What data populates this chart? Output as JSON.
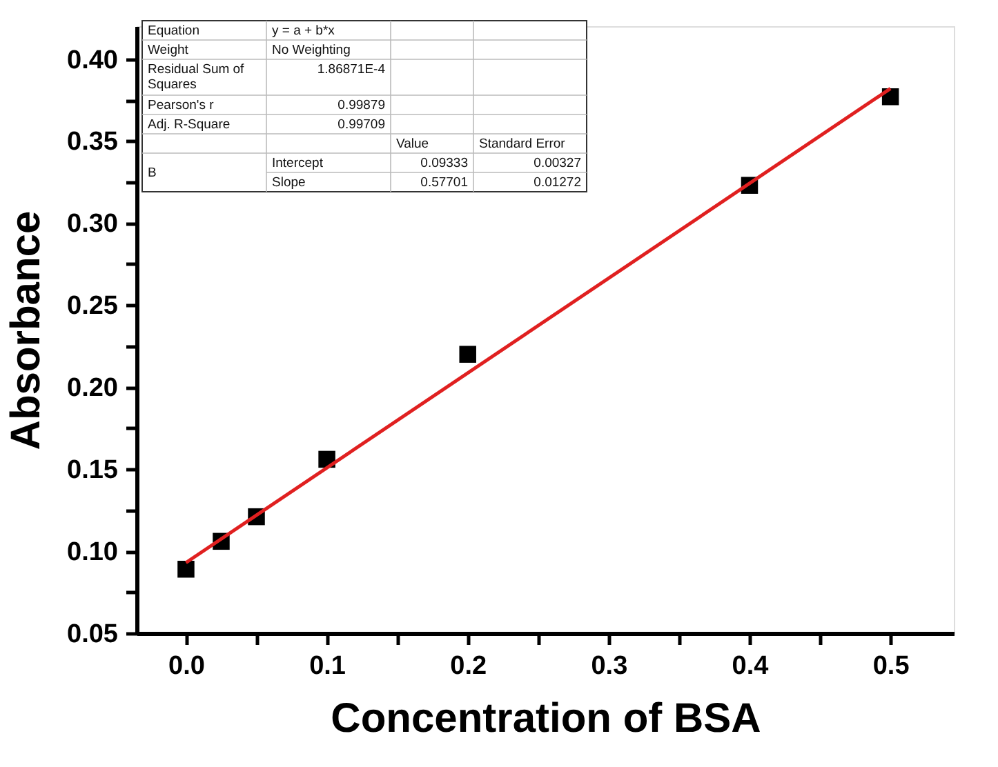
{
  "chart_data": {
    "type": "scatter",
    "xlabel": "Concentration of  BSA",
    "ylabel": "Absorbance",
    "xlim": [
      -0.035,
      0.545
    ],
    "ylim": [
      0.05,
      0.42
    ],
    "xticks": [
      {
        "value": 0.0,
        "label": "0.0"
      },
      {
        "value": 0.05,
        "label": null
      },
      0.1,
      {
        "value": 0.15,
        "label": null
      },
      0.2,
      {
        "value": 0.25,
        "label": null
      },
      0.3,
      {
        "value": 0.35,
        "label": null
      },
      0.4,
      {
        "value": 0.45,
        "label": null
      },
      0.5
    ],
    "yticks": [
      0.05,
      {
        "value": 0.075,
        "label": null
      },
      {
        "value": 0.1,
        "label": "0.10"
      },
      {
        "value": 0.125,
        "label": null
      },
      0.15,
      {
        "value": 0.175,
        "label": null
      },
      {
        "value": 0.2,
        "label": "0.20"
      },
      {
        "value": 0.225,
        "label": null
      },
      0.25,
      {
        "value": 0.275,
        "label": null
      },
      {
        "value": 0.3,
        "label": "0.30"
      },
      {
        "value": 0.325,
        "label": null
      },
      0.35,
      {
        "value": 0.375,
        "label": null
      },
      {
        "value": 0.4,
        "label": "0.40"
      }
    ],
    "grid": false,
    "series": [
      {
        "marker": "square",
        "color": "#000000",
        "x": [
          0,
          0.025,
          0.05,
          0.1,
          0.2,
          0.4,
          0.5
        ],
        "values": [
          0.089,
          0.106,
          0.121,
          0.156,
          0.22,
          0.323,
          0.377
        ]
      },
      {
        "type": "line",
        "line_style": "solid",
        "color": "#e02020",
        "x": [
          0,
          0.5
        ],
        "values": [
          0.093,
          0.382
        ]
      }
    ],
    "annotations": [
      "Equation",
      "y = a + b*x",
      "Weight",
      "No Weighting",
      "Residual Sum of Squares",
      "1.86871E-4",
      "Pearson's r",
      "0.99879",
      "Adj. R-Square",
      "0.99709",
      "Value",
      "Standard Error",
      "B",
      "Intercept",
      "0.09333",
      "0.00327",
      "Slope",
      "0.57701",
      "0.01272"
    ]
  }
}
